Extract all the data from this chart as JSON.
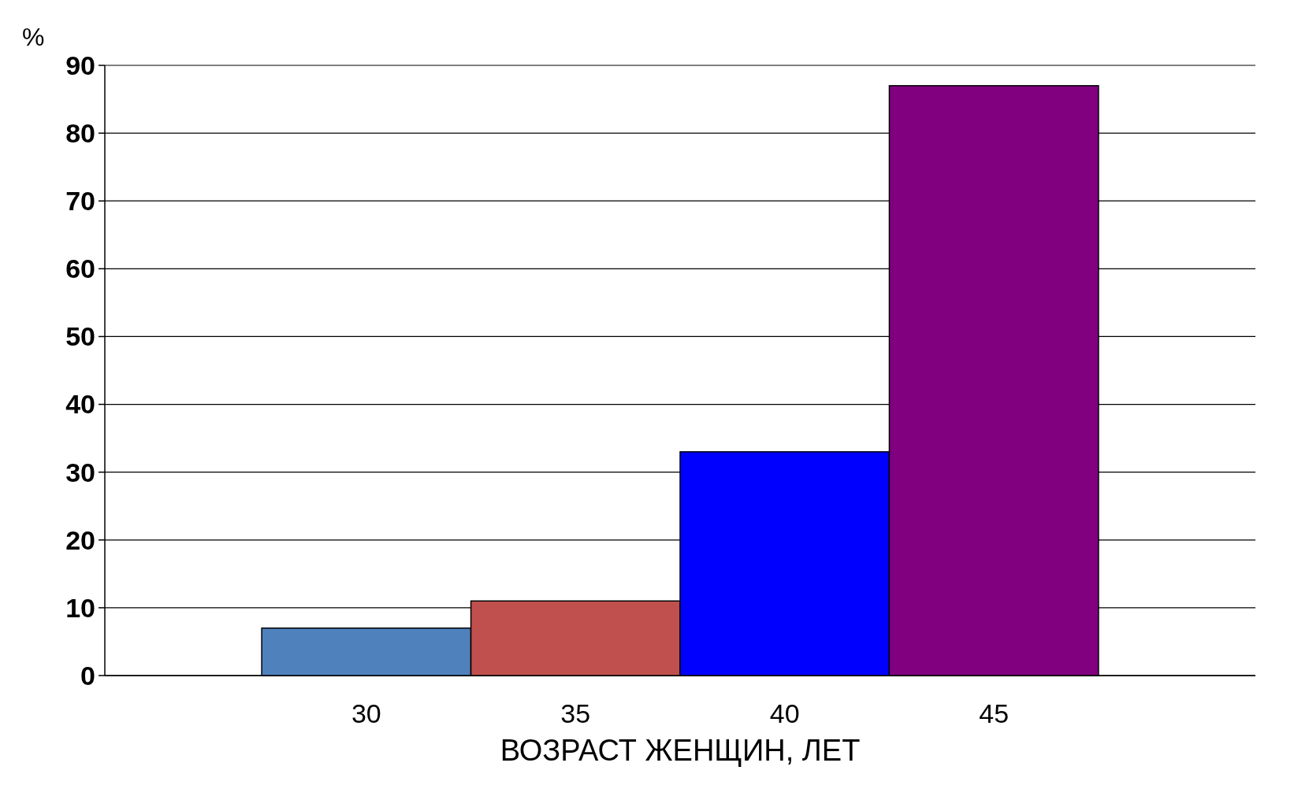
{
  "chart_data": {
    "type": "bar",
    "ylabel": "%",
    "xlabel": "ВОЗРАСТ ЖЕНЩИН, ЛЕТ",
    "categories": [
      "30",
      "35",
      "40",
      "45"
    ],
    "values": [
      7,
      11,
      33,
      87
    ],
    "colors": [
      "#4f81bd",
      "#c0504d",
      "#0000ff",
      "#800080"
    ],
    "ylim": [
      0,
      90
    ],
    "yticks": [
      0,
      10,
      20,
      30,
      40,
      50,
      60,
      70,
      80,
      90
    ],
    "grid": "y"
  }
}
